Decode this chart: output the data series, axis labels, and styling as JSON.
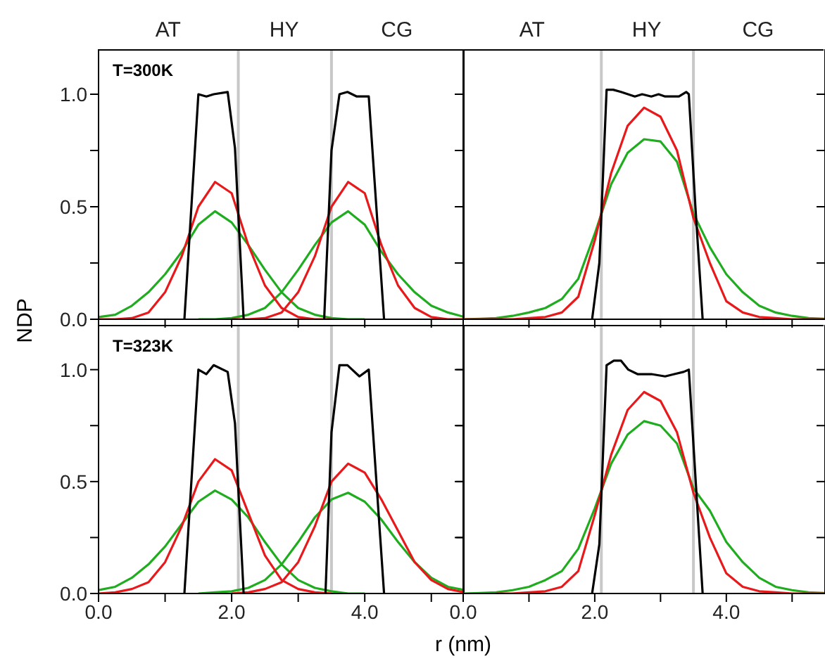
{
  "chart_data": [
    {
      "type": "line",
      "ylabel": "NDP",
      "title": "T=300K",
      "annotations": [
        "AT",
        "HY",
        "CG"
      ],
      "tick_labels": "y",
      "xlim": [
        0,
        5.5
      ],
      "xticks": [
        {
          "value": 0,
          "label": null
        },
        {
          "value": 1,
          "label": null
        },
        {
          "value": 2,
          "label": null
        },
        {
          "value": 3,
          "label": null
        },
        {
          "value": 4,
          "label": null
        },
        {
          "value": 5,
          "label": null
        }
      ],
      "ylim": [
        0,
        1.2
      ],
      "yticks": [
        {
          "value": 0,
          "label": "0.0"
        },
        {
          "value": 0.25,
          "label": null
        },
        {
          "value": 0.5,
          "label": "0.5"
        },
        {
          "value": 0.75,
          "label": null
        },
        {
          "value": 1,
          "label": "1.0"
        }
      ],
      "ref_lines": [
        {
          "axis": "x",
          "value": 2.1,
          "color": "#c8c8c8"
        },
        {
          "axis": "x",
          "value": 3.5,
          "color": "#c8c8c8"
        }
      ],
      "series": [
        {
          "color": "#1fad1f",
          "x": [
            0,
            0.25,
            0.5,
            0.75,
            1,
            1.25,
            1.5,
            1.75,
            2,
            2.25,
            2.5,
            2.75,
            3,
            3.25,
            3.5,
            3.75,
            4
          ],
          "values": [
            0.01,
            0.02,
            0.06,
            0.12,
            0.2,
            0.3,
            0.42,
            0.48,
            0.43,
            0.33,
            0.22,
            0.12,
            0.05,
            0.02,
            0.005,
            0,
            0
          ]
        },
        {
          "color": "#1fad1f",
          "x": [
            1.5,
            1.75,
            2,
            2.25,
            2.5,
            2.75,
            3,
            3.25,
            3.5,
            3.75,
            4,
            4.25,
            4.5,
            4.75,
            5,
            5.25,
            5.5
          ],
          "values": [
            0,
            0,
            0.005,
            0.02,
            0.05,
            0.12,
            0.22,
            0.33,
            0.43,
            0.48,
            0.42,
            0.3,
            0.2,
            0.12,
            0.06,
            0.03,
            0.01
          ]
        },
        {
          "color": "#e8191b",
          "x": [
            0,
            0.25,
            0.5,
            0.75,
            1,
            1.25,
            1.5,
            1.75,
            2,
            2.25,
            2.5,
            2.75,
            3,
            3.25,
            3.5
          ],
          "values": [
            0,
            0,
            0.005,
            0.03,
            0.12,
            0.28,
            0.5,
            0.61,
            0.56,
            0.33,
            0.15,
            0.05,
            0.01,
            0,
            0
          ]
        },
        {
          "color": "#e8191b",
          "x": [
            2,
            2.25,
            2.5,
            2.75,
            3,
            3.25,
            3.5,
            3.75,
            4,
            4.25,
            4.5,
            4.75,
            5,
            5.25,
            5.5
          ],
          "values": [
            0,
            0,
            0.005,
            0.03,
            0.12,
            0.28,
            0.5,
            0.61,
            0.56,
            0.33,
            0.15,
            0.05,
            0.01,
            0,
            0
          ]
        },
        {
          "color": "#000000",
          "x": [
            1.29,
            1.5,
            1.62,
            1.73,
            1.94,
            2.05,
            2.18
          ],
          "values": [
            0,
            1,
            0.99,
            1,
            1.01,
            0.76,
            0
          ]
        },
        {
          "color": "#000000",
          "x": [
            3.39,
            3.5,
            3.62,
            3.74,
            3.88,
            4.06,
            4.29
          ],
          "values": [
            0,
            0.75,
            1,
            1.01,
            0.99,
            0.99,
            0
          ]
        }
      ]
    },
    {
      "type": "line",
      "tick_labels": false,
      "annotations": [
        "AT",
        "HY",
        "CG"
      ],
      "xlim": [
        0,
        5.5
      ],
      "xticks": [
        {
          "value": 0,
          "label": null
        },
        {
          "value": 1,
          "label": null
        },
        {
          "value": 2,
          "label": null
        },
        {
          "value": 3,
          "label": null
        },
        {
          "value": 4,
          "label": null
        },
        {
          "value": 5,
          "label": null
        }
      ],
      "ylim": [
        0,
        1.2
      ],
      "yticks": [
        {
          "value": 0,
          "label": null
        },
        {
          "value": 0.25,
          "label": null
        },
        {
          "value": 0.5,
          "label": null
        },
        {
          "value": 0.75,
          "label": null
        },
        {
          "value": 1,
          "label": null
        }
      ],
      "ref_lines": [
        {
          "axis": "x",
          "value": 2.1,
          "color": "#c8c8c8"
        },
        {
          "axis": "x",
          "value": 3.5,
          "color": "#c8c8c8"
        }
      ],
      "series": [
        {
          "color": "#1fad1f",
          "x": [
            0,
            0.25,
            0.5,
            0.75,
            1,
            1.25,
            1.5,
            1.75,
            2,
            2.25,
            2.5,
            2.75,
            3,
            3.25,
            3.5,
            3.75,
            4,
            4.25,
            4.5,
            4.75,
            5,
            5.25,
            5.5
          ],
          "values": [
            0,
            0.002,
            0.005,
            0.015,
            0.03,
            0.05,
            0.09,
            0.18,
            0.38,
            0.6,
            0.74,
            0.8,
            0.79,
            0.7,
            0.47,
            0.32,
            0.2,
            0.12,
            0.06,
            0.03,
            0.015,
            0.005,
            0.002
          ]
        },
        {
          "color": "#e8191b",
          "x": [
            0,
            0.25,
            0.5,
            0.75,
            1,
            1.25,
            1.5,
            1.75,
            2,
            2.25,
            2.5,
            2.75,
            3,
            3.25,
            3.5,
            3.75,
            4,
            4.25,
            4.5,
            4.75,
            5,
            5.25,
            5.5
          ],
          "values": [
            0,
            0,
            0,
            0,
            0.005,
            0.01,
            0.03,
            0.1,
            0.35,
            0.65,
            0.86,
            0.94,
            0.9,
            0.75,
            0.45,
            0.25,
            0.08,
            0.03,
            0.01,
            0.005,
            0,
            0,
            0
          ]
        },
        {
          "color": "#000000",
          "x": [
            1.96,
            2.07,
            2.18,
            2.28,
            2.4,
            2.61,
            2.72,
            2.86,
            2.97,
            3.07,
            3.28,
            3.39,
            3.43,
            3.53,
            3.64
          ],
          "values": [
            0,
            0.25,
            1.02,
            1.02,
            1.01,
            0.99,
            1,
            0.99,
            1,
            0.99,
            0.99,
            1.01,
            1,
            0.5,
            0
          ]
        }
      ]
    },
    {
      "type": "line",
      "xlabel": "r (nm)",
      "title": "T=323K",
      "xlim": [
        0,
        5.5
      ],
      "xticks": [
        {
          "value": 0,
          "label": "0.0"
        },
        {
          "value": 1,
          "label": null
        },
        {
          "value": 2,
          "label": "2.0"
        },
        {
          "value": 3,
          "label": null
        },
        {
          "value": 4,
          "label": "4.0"
        },
        {
          "value": 5,
          "label": null
        }
      ],
      "ylim": [
        0,
        1.2
      ],
      "yticks": [
        {
          "value": 0,
          "label": "0.0"
        },
        {
          "value": 0.25,
          "label": null
        },
        {
          "value": 0.5,
          "label": "0.5"
        },
        {
          "value": 0.75,
          "label": null
        },
        {
          "value": 1,
          "label": "1.0"
        }
      ],
      "ref_lines": [
        {
          "axis": "x",
          "value": 2.1,
          "color": "#c8c8c8"
        },
        {
          "axis": "x",
          "value": 3.5,
          "color": "#c8c8c8"
        }
      ],
      "series": [
        {
          "color": "#1fad1f",
          "x": [
            0,
            0.25,
            0.5,
            0.75,
            1,
            1.25,
            1.5,
            1.75,
            2,
            2.25,
            2.5,
            2.75,
            3,
            3.25,
            3.5,
            3.75,
            4
          ],
          "values": [
            0.015,
            0.03,
            0.07,
            0.13,
            0.21,
            0.31,
            0.41,
            0.46,
            0.42,
            0.34,
            0.23,
            0.13,
            0.06,
            0.025,
            0.01,
            0,
            0
          ]
        },
        {
          "color": "#1fad1f",
          "x": [
            1.5,
            1.75,
            2,
            2.25,
            2.5,
            2.75,
            3,
            3.25,
            3.5,
            3.75,
            4,
            4.25,
            4.5,
            4.75,
            5,
            5.25,
            5.5
          ],
          "values": [
            0,
            0.005,
            0.01,
            0.025,
            0.06,
            0.13,
            0.23,
            0.34,
            0.42,
            0.45,
            0.41,
            0.33,
            0.23,
            0.14,
            0.07,
            0.03,
            0.015
          ]
        },
        {
          "color": "#e8191b",
          "x": [
            0,
            0.25,
            0.5,
            0.75,
            1,
            1.25,
            1.5,
            1.75,
            2,
            2.25,
            2.5,
            2.75,
            3,
            3.25,
            3.5
          ],
          "values": [
            0,
            0.005,
            0.02,
            0.05,
            0.14,
            0.3,
            0.5,
            0.6,
            0.55,
            0.36,
            0.17,
            0.06,
            0.02,
            0.005,
            0
          ]
        },
        {
          "color": "#e8191b",
          "x": [
            2,
            2.25,
            2.5,
            2.75,
            3,
            3.25,
            3.5,
            3.75,
            4,
            4.25,
            4.5,
            4.75,
            5,
            5.25,
            5.5
          ],
          "values": [
            0,
            0.005,
            0.02,
            0.05,
            0.14,
            0.3,
            0.5,
            0.58,
            0.54,
            0.42,
            0.28,
            0.14,
            0.06,
            0.02,
            0.005
          ]
        },
        {
          "color": "#000000",
          "x": [
            1.29,
            1.5,
            1.62,
            1.73,
            1.94,
            2.05,
            2.18
          ],
          "values": [
            0,
            1,
            0.98,
            1.02,
            0.99,
            0.76,
            0
          ]
        },
        {
          "color": "#000000",
          "x": [
            3.41,
            3.5,
            3.62,
            3.74,
            3.92,
            4.06,
            4.29
          ],
          "values": [
            0,
            0.72,
            1.02,
            1.02,
            0.97,
            1,
            0
          ]
        }
      ]
    },
    {
      "type": "line",
      "tick_labels": "x",
      "xlim": [
        0,
        5.5
      ],
      "xticks": [
        {
          "value": 0,
          "label": "0.0"
        },
        {
          "value": 1,
          "label": null
        },
        {
          "value": 2,
          "label": "2.0"
        },
        {
          "value": 3,
          "label": null
        },
        {
          "value": 4,
          "label": "4.0"
        },
        {
          "value": 5,
          "label": null
        }
      ],
      "ylim": [
        0,
        1.2
      ],
      "yticks": [
        {
          "value": 0,
          "label": null
        },
        {
          "value": 0.25,
          "label": null
        },
        {
          "value": 0.5,
          "label": null
        },
        {
          "value": 0.75,
          "label": null
        },
        {
          "value": 1,
          "label": null
        }
      ],
      "ref_lines": [
        {
          "axis": "x",
          "value": 2.1,
          "color": "#c8c8c8"
        },
        {
          "axis": "x",
          "value": 3.5,
          "color": "#c8c8c8"
        }
      ],
      "series": [
        {
          "color": "#1fad1f",
          "x": [
            0,
            0.25,
            0.5,
            0.75,
            1,
            1.25,
            1.5,
            1.75,
            2,
            2.25,
            2.5,
            2.75,
            3,
            3.25,
            3.5,
            3.75,
            4,
            4.25,
            4.5,
            4.75,
            5,
            5.25,
            5.5
          ],
          "values": [
            0,
            0.002,
            0.005,
            0.015,
            0.03,
            0.06,
            0.1,
            0.2,
            0.38,
            0.58,
            0.71,
            0.77,
            0.75,
            0.67,
            0.47,
            0.37,
            0.23,
            0.14,
            0.07,
            0.03,
            0.015,
            0.005,
            0.002
          ]
        },
        {
          "color": "#e8191b",
          "x": [
            0.5,
            0.75,
            1,
            1.25,
            1.5,
            1.75,
            2,
            2.25,
            2.5,
            2.75,
            3,
            3.25,
            3.5,
            3.75,
            4,
            4.25,
            4.5,
            4.75,
            5,
            5.25,
            5.5
          ],
          "values": [
            0,
            0,
            0.005,
            0.01,
            0.03,
            0.1,
            0.35,
            0.62,
            0.82,
            0.9,
            0.86,
            0.72,
            0.45,
            0.25,
            0.09,
            0.03,
            0.01,
            0.005,
            0,
            0,
            0
          ]
        },
        {
          "color": "#000000",
          "x": [
            1.96,
            2.07,
            2.18,
            2.29,
            2.4,
            2.51,
            2.65,
            2.86,
            3.07,
            3.21,
            3.35,
            3.43,
            3.64
          ],
          "values": [
            0,
            0.22,
            1.02,
            1.04,
            1.04,
            1,
            0.98,
            0.98,
            0.97,
            0.98,
            0.99,
            1,
            0
          ]
        }
      ]
    }
  ]
}
